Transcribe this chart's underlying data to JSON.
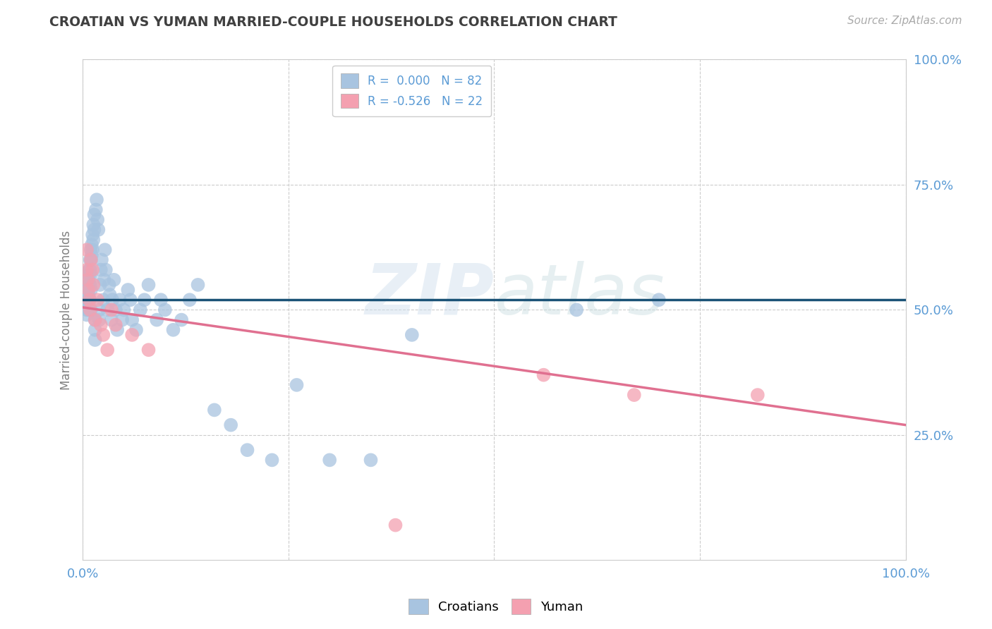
{
  "title": "CROATIAN VS YUMAN MARRIED-COUPLE HOUSEHOLDS CORRELATION CHART",
  "source": "Source: ZipAtlas.com",
  "ylabel": "Married-couple Households",
  "xlim": [
    0,
    1.0
  ],
  "ylim": [
    0,
    1.0
  ],
  "xtick_labels": [
    "0.0%",
    "",
    "",
    "",
    "100.0%"
  ],
  "ytick_labels": [
    "25.0%",
    "50.0%",
    "75.0%",
    "100.0%"
  ],
  "watermark": "ZIPatlas",
  "legend_entry1": "R =  0.000   N = 82",
  "legend_entry2": "R = -0.526   N = 22",
  "croatian_color": "#a8c4e0",
  "yuman_color": "#f4a0b0",
  "regression_croatian_color": "#1a5276",
  "regression_yuman_color": "#e07090",
  "background_color": "#ffffff",
  "grid_color": "#cccccc",
  "title_color": "#404040",
  "tick_label_color": "#5b9bd5",
  "ylabel_color": "#808080",
  "croatian_x": [
    0.005,
    0.005,
    0.005,
    0.006,
    0.006,
    0.006,
    0.007,
    0.007,
    0.007,
    0.007,
    0.008,
    0.008,
    0.008,
    0.008,
    0.009,
    0.009,
    0.009,
    0.009,
    0.01,
    0.01,
    0.01,
    0.01,
    0.01,
    0.011,
    0.011,
    0.012,
    0.012,
    0.013,
    0.013,
    0.014,
    0.014,
    0.015,
    0.015,
    0.015,
    0.016,
    0.017,
    0.018,
    0.019,
    0.02,
    0.02,
    0.021,
    0.022,
    0.023,
    0.025,
    0.026,
    0.027,
    0.028,
    0.03,
    0.032,
    0.033,
    0.035,
    0.036,
    0.038,
    0.04,
    0.042,
    0.045,
    0.048,
    0.05,
    0.055,
    0.058,
    0.06,
    0.065,
    0.07,
    0.075,
    0.08,
    0.09,
    0.095,
    0.1,
    0.11,
    0.12,
    0.13,
    0.14,
    0.16,
    0.18,
    0.2,
    0.23,
    0.26,
    0.3,
    0.35,
    0.4,
    0.6,
    0.7
  ],
  "croatian_y": [
    0.52,
    0.5,
    0.49,
    0.54,
    0.53,
    0.51,
    0.56,
    0.55,
    0.53,
    0.5,
    0.58,
    0.57,
    0.55,
    0.52,
    0.6,
    0.58,
    0.55,
    0.52,
    0.62,
    0.6,
    0.57,
    0.54,
    0.5,
    0.63,
    0.61,
    0.65,
    0.62,
    0.67,
    0.64,
    0.69,
    0.66,
    0.48,
    0.46,
    0.44,
    0.7,
    0.72,
    0.68,
    0.66,
    0.5,
    0.48,
    0.55,
    0.58,
    0.6,
    0.52,
    0.56,
    0.62,
    0.58,
    0.5,
    0.55,
    0.53,
    0.48,
    0.52,
    0.56,
    0.5,
    0.46,
    0.52,
    0.48,
    0.5,
    0.54,
    0.52,
    0.48,
    0.46,
    0.5,
    0.52,
    0.55,
    0.48,
    0.52,
    0.5,
    0.46,
    0.48,
    0.52,
    0.55,
    0.3,
    0.27,
    0.22,
    0.2,
    0.35,
    0.2,
    0.2,
    0.45,
    0.5,
    0.52
  ],
  "yuman_x": [
    0.005,
    0.005,
    0.006,
    0.007,
    0.008,
    0.009,
    0.01,
    0.012,
    0.013,
    0.015,
    0.018,
    0.022,
    0.025,
    0.03,
    0.035,
    0.04,
    0.06,
    0.08,
    0.38,
    0.56,
    0.67,
    0.82
  ],
  "yuman_y": [
    0.62,
    0.58,
    0.56,
    0.54,
    0.52,
    0.5,
    0.6,
    0.58,
    0.55,
    0.48,
    0.52,
    0.47,
    0.45,
    0.42,
    0.5,
    0.47,
    0.45,
    0.42,
    0.07,
    0.37,
    0.33,
    0.33
  ],
  "yuman_line_x": [
    0.0,
    1.0
  ],
  "yuman_line_y": [
    0.505,
    0.27
  ]
}
